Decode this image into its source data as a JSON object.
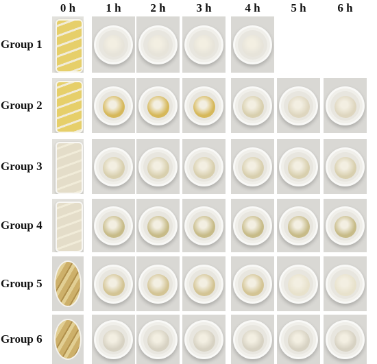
{
  "headers": [
    "0 h",
    "1 h",
    "2 h",
    "3 h",
    "4 h",
    "5 h",
    "6 h"
  ],
  "rows": [
    {
      "label": "Group 1",
      "cells": [
        "beaker-yellow",
        "cup-clear",
        "cup-clear",
        "cup-clear",
        "cup-clear",
        "empty",
        "empty"
      ]
    },
    {
      "label": "Group 2",
      "cells": [
        "beaker-yellow",
        "cup-yellow",
        "cup-yellow",
        "cup-yellow",
        "cup-beige",
        "cup-light",
        "cup-light"
      ]
    },
    {
      "label": "Group 3",
      "cells": [
        "beaker-white",
        "cup-beige",
        "cup-beige",
        "cup-beige",
        "cup-beige",
        "cup-beige",
        "cup-beige"
      ]
    },
    {
      "label": "Group 4",
      "cells": [
        "beaker-white",
        "cup-olive",
        "cup-olive",
        "cup-olive",
        "cup-olive",
        "cup-olive",
        "cup-olive"
      ]
    },
    {
      "label": "Group 5",
      "cells": [
        "dish-flakes",
        "cup-tan",
        "cup-tan",
        "cup-tan",
        "cup-tan",
        "cup-cream",
        "cup-cream"
      ]
    },
    {
      "label": "Group 6",
      "cells": [
        "dish-flakes",
        "cup-grey",
        "cup-grey",
        "cup-grey",
        "cup-grey",
        "cup-grey",
        "cup-grey"
      ]
    }
  ],
  "colors": {
    "beaker-yellow": "#e6cf6a",
    "beaker-white": "#e4ddc9",
    "dish-flakes": "#cdb06a",
    "cup-clear": "#e7e4da",
    "cup-yellow": "#d6b85a",
    "cup-beige": "#d8cfae",
    "cup-light": "#ded6bf",
    "cup-olive": "#c7bb88",
    "cup-tan": "#d3c494",
    "cup-cream": "#e8e2cc",
    "cup-grey": "#d7d2c3"
  }
}
